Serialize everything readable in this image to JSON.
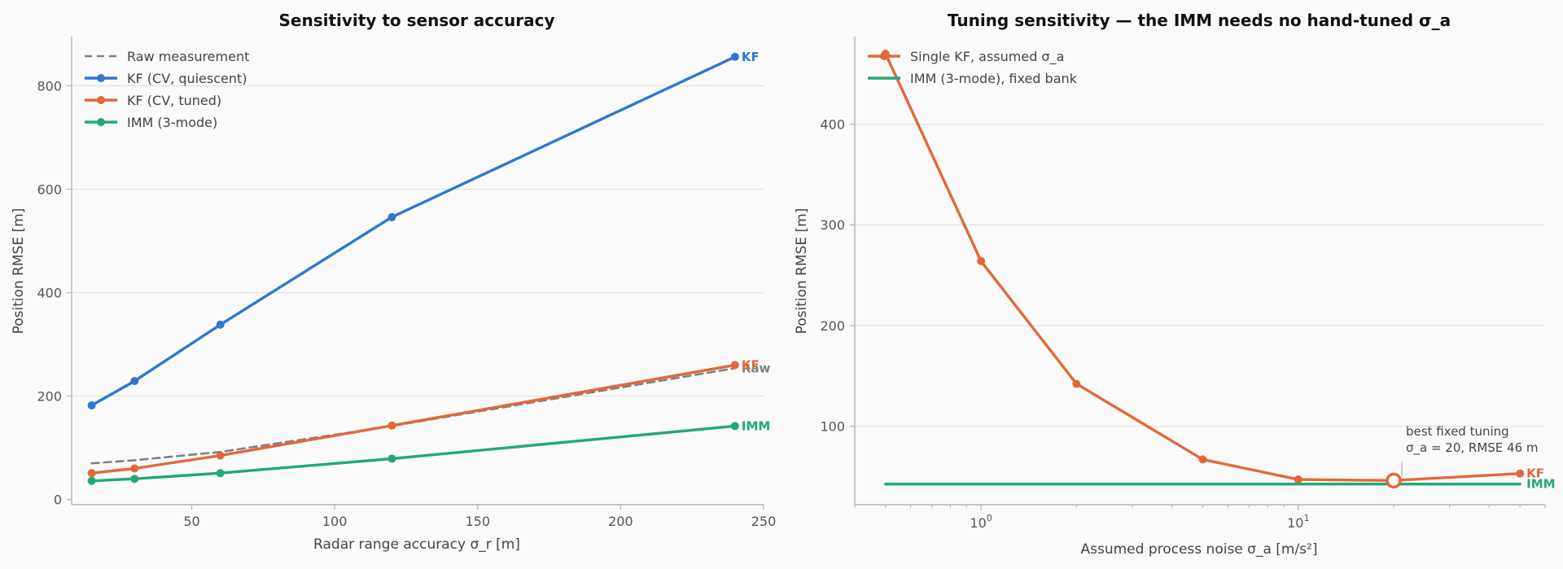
{
  "colors": {
    "background": "#fafafa",
    "grid": "#e1e1dc",
    "axis": "#b5b5a8",
    "kf_quiescent": "#2f77d0",
    "kf_tuned": "#e2683a",
    "imm": "#22a877",
    "raw": "#808080"
  },
  "chart_data": [
    {
      "type": "line",
      "title": "Sensitivity to sensor accuracy",
      "xlabel": "Radar range accuracy σ_r [m]",
      "ylabel": "Position RMSE [m]",
      "xlim": [
        8,
        250
      ],
      "ylim": [
        -10,
        895
      ],
      "xticks": [
        50,
        100,
        150,
        200,
        250
      ],
      "yticks": [
        0,
        200,
        400,
        600,
        800
      ],
      "grid": "horizontal",
      "legend_position": "upper-left",
      "x": [
        15,
        30,
        60,
        120,
        240
      ],
      "series": [
        {
          "name": "Raw measurement",
          "style": "dashed",
          "color": "#808080",
          "markers": false,
          "end_label": "Raw",
          "values": [
            70,
            76,
            92,
            142,
            254
          ]
        },
        {
          "name": "KF (CV, quiescent)",
          "style": "solid",
          "color": "#2f77d0",
          "markers": true,
          "end_label": "KF",
          "values": [
            182,
            229,
            338,
            546,
            856
          ]
        },
        {
          "name": "KF (CV, tuned)",
          "style": "solid",
          "color": "#e2683a",
          "markers": true,
          "end_label": "KF",
          "values": [
            51,
            60,
            85,
            143,
            260
          ]
        },
        {
          "name": "IMM (3-mode)",
          "style": "solid",
          "color": "#22a877",
          "markers": true,
          "end_label": "IMM",
          "values": [
            36,
            40,
            51,
            79,
            142
          ]
        }
      ]
    },
    {
      "type": "line",
      "title": "Tuning sensitivity — the IMM needs no hand-tuned σ_a",
      "xlabel": "Assumed process noise σ_a [m/s²]",
      "ylabel": "Position RMSE [m]",
      "xscale": "log",
      "xlim": [
        0.4,
        60
      ],
      "ylim": [
        22,
        487
      ],
      "xticks": [
        {
          "value": 1,
          "base": "10",
          "exp": "0"
        },
        {
          "value": 10,
          "base": "10",
          "exp": "1"
        }
      ],
      "yticks": [
        100,
        200,
        300,
        400
      ],
      "grid": "horizontal",
      "legend_position": "upper-left",
      "series": [
        {
          "name": "Single KF, assumed σ_a",
          "style": "solid",
          "color": "#e2683a",
          "markers": true,
          "end_label": "KF",
          "x": [
            0.5,
            1,
            2,
            5,
            10,
            20,
            50
          ],
          "values": [
            470,
            264,
            142,
            67,
            47,
            46,
            53
          ]
        },
        {
          "name": "IMM (3-mode), fixed bank",
          "style": "solid",
          "color": "#22a877",
          "markers": false,
          "end_label": "IMM",
          "x": [
            0.5,
            50
          ],
          "values": [
            42.5,
            42.5
          ]
        }
      ],
      "highlight": {
        "x": 20,
        "y": 46,
        "color": "#e2683a"
      },
      "annotation": [
        "best fixed tuning",
        "σ_a = 20, RMSE 46 m"
      ]
    }
  ]
}
